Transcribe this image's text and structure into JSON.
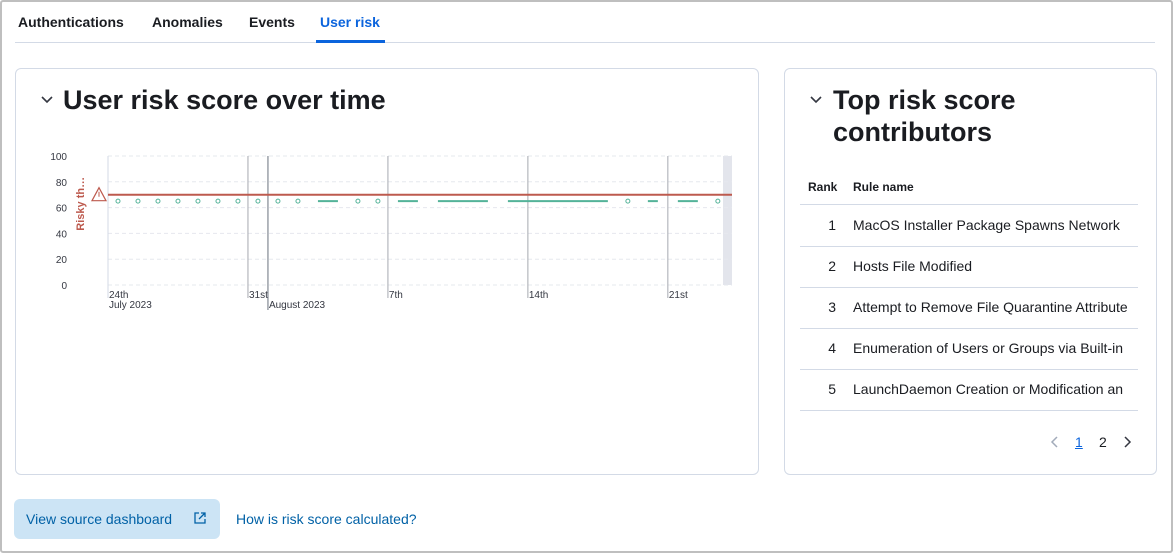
{
  "tabs": [
    "Authentications",
    "Anomalies",
    "Events",
    "User risk"
  ],
  "active_tab": 3,
  "chart_data": {
    "type": "line",
    "title": "User risk score over time",
    "x": [
      "2023-07-24T12:00",
      "2023-07-25T00:00",
      "2023-07-25T12:00",
      "2023-07-26T00:00",
      "2023-07-26T12:00",
      "2023-07-27T00:00",
      "2023-07-27T12:00",
      "2023-07-28T00:00",
      "2023-07-28T12:00",
      "2023-07-29T00:00",
      "2023-07-29T12:00",
      "2023-07-30T00:00",
      "2023-07-30T12:00",
      "2023-07-31T00:00",
      "2023-07-31T12:00",
      "2023-08-01T00:00",
      "2023-08-01T12:00",
      "2023-08-02T00:00",
      "2023-08-02T12:00",
      "2023-08-03T00:00",
      "2023-08-03T12:00",
      "2023-08-04T00:00",
      "2023-08-04T12:00",
      "2023-08-05T00:00",
      "2023-08-05T12:00",
      "2023-08-06T00:00",
      "2023-08-06T12:00",
      "2023-08-07T00:00",
      "2023-08-07T12:00",
      "2023-08-08T00:00",
      "2023-08-08T12:00",
      "2023-08-09T00:00",
      "2023-08-09T12:00",
      "2023-08-10T00:00",
      "2023-08-10T12:00",
      "2023-08-11T00:00",
      "2023-08-11T12:00",
      "2023-08-12T00:00",
      "2023-08-12T12:00",
      "2023-08-13T00:00",
      "2023-08-13T12:00",
      "2023-08-14T00:00",
      "2023-08-14T12:00",
      "2023-08-15T00:00",
      "2023-08-15T12:00",
      "2023-08-16T00:00",
      "2023-08-16T12:00",
      "2023-08-17T00:00",
      "2023-08-17T12:00",
      "2023-08-18T00:00",
      "2023-08-18T12:00",
      "2023-08-19T00:00",
      "2023-08-19T12:00",
      "2023-08-20T00:00",
      "2023-08-20T12:00",
      "2023-08-21T00:00",
      "2023-08-21T12:00",
      "2023-08-22T00:00",
      "2023-08-22T12:00",
      "2023-08-23T00:00",
      "2023-08-23T12:00"
    ],
    "values": [
      65,
      null,
      65,
      null,
      65,
      null,
      65,
      null,
      65,
      null,
      65,
      null,
      65,
      null,
      65,
      null,
      65,
      null,
      65,
      null,
      65,
      65,
      65,
      null,
      65,
      null,
      65,
      null,
      65,
      65,
      65,
      null,
      65,
      65,
      65,
      65,
      65,
      65,
      null,
      65,
      65,
      65,
      65,
      65,
      65,
      65,
      65,
      65,
      65,
      65,
      null,
      65,
      null,
      65,
      65,
      null,
      65,
      65,
      65,
      null,
      65
    ],
    "color": "#54b399",
    "xlim": [
      "2023-07-24T00:00",
      "2023-08-24T05:00"
    ],
    "xticks": [
      {
        "value": "2023-07-24T00:00",
        "label": "24th"
      },
      {
        "value": "2023-07-31T00:00",
        "label": "31st"
      },
      {
        "value": "2023-08-07T00:00",
        "label": "7th"
      },
      {
        "value": "2023-08-14T00:00",
        "label": "14th"
      },
      {
        "value": "2023-08-21T00:00",
        "label": "21st"
      }
    ],
    "x_month_labels": [
      {
        "value": "2023-07-24T00:00",
        "label": "July 2023"
      },
      {
        "value": "2023-08-01T00:00",
        "label": "August 2023"
      }
    ],
    "ylim": [
      0,
      100
    ],
    "yticks": [
      0,
      20,
      40,
      60,
      80,
      100
    ],
    "grid": true,
    "threshold": {
      "value": 70,
      "label": "Risky th…",
      "color": "#bd5a4e"
    }
  },
  "right_panel": {
    "title": "Top risk score contributors",
    "table": {
      "headers": [
        "Rank",
        "Rule name"
      ],
      "rows": [
        [
          1,
          "MacOS Installer Package Spawns Network"
        ],
        [
          2,
          "Hosts File Modified"
        ],
        [
          3,
          "Attempt to Remove File Quarantine Attribute"
        ],
        [
          4,
          "Enumeration of Users or Groups via Built-in"
        ],
        [
          5,
          "LaunchDaemon Creation or Modification an"
        ]
      ]
    },
    "pagination": {
      "pages": [
        1,
        2
      ],
      "current": 0
    }
  },
  "footer": {
    "button": "View source dashboard",
    "link": "How is risk score calculated?"
  }
}
